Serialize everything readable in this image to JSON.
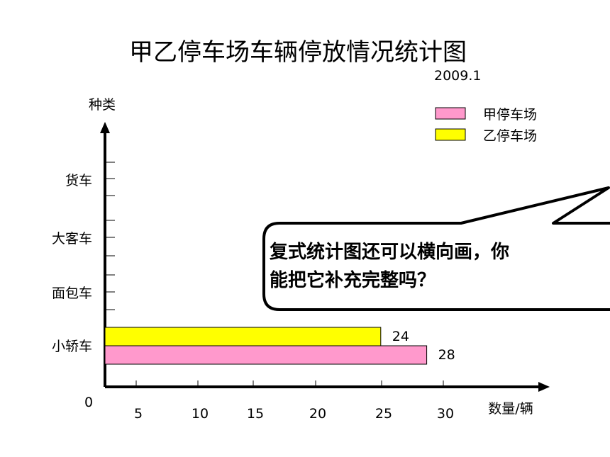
{
  "chart_data": {
    "type": "bar",
    "orientation": "horizontal",
    "title": "甲乙停车场车辆停放情况统计图",
    "subtitle": "2009.1",
    "xlabel": "数量/辆",
    "ylabel": "种类",
    "categories": [
      "小轿车",
      "面包车",
      "大客车",
      "货车"
    ],
    "x_ticks": [
      "5",
      "10",
      "15",
      "20",
      "25",
      "30"
    ],
    "origin_label": "0",
    "xlim": [
      0,
      35
    ],
    "series": [
      {
        "name": "甲停车场",
        "color": "#ff99cc",
        "values": [
          28,
          null,
          null,
          null
        ]
      },
      {
        "name": "乙停车场",
        "color": "#ffff00",
        "values": [
          24,
          null,
          null,
          null
        ]
      }
    ],
    "data_labels": [
      "28",
      "24"
    ],
    "legend_position": "top-right"
  },
  "callout": {
    "line1": "复式统计图还可以横向画，你",
    "line2": "能把它补充完整吗？"
  }
}
